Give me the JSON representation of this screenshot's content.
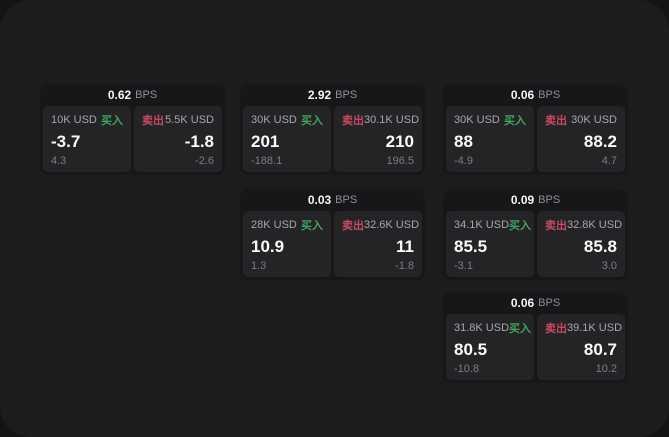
{
  "labels": {
    "bps": "BPS",
    "buy": "买入",
    "sell": "卖出"
  },
  "colors": {
    "page_bg": "#141414",
    "window_bg": "#1c1c1e",
    "card_bg": "#17171a",
    "panel_bg": "#242427",
    "buy_green": "#3ea55c",
    "sell_red": "#c64a62"
  },
  "cards": [
    {
      "bps": "0.62",
      "buy": {
        "size": "10K USD",
        "value": "-3.7",
        "delta": "4.3"
      },
      "sell": {
        "size": "5.5K USD",
        "value": "-1.8",
        "delta": "-2.6"
      }
    },
    {
      "bps": "2.92",
      "buy": {
        "size": "30K USD",
        "value": "201",
        "delta": "-188.1"
      },
      "sell": {
        "size": "30.1K USD",
        "value": "210",
        "delta": "196.5"
      }
    },
    {
      "bps": "0.06",
      "buy": {
        "size": "30K USD",
        "value": "88",
        "delta": "-4.9"
      },
      "sell": {
        "size": "30K USD",
        "value": "88.2",
        "delta": "4.7"
      }
    },
    {
      "bps": "0.03",
      "buy": {
        "size": "28K USD",
        "value": "10.9",
        "delta": "1.3"
      },
      "sell": {
        "size": "32.6K USD",
        "value": "11",
        "delta": "-1.8"
      }
    },
    {
      "bps": "0.09",
      "buy": {
        "size": "34.1K USD",
        "value": "85.5",
        "delta": "-3.1"
      },
      "sell": {
        "size": "32.8K USD",
        "value": "85.8",
        "delta": "3.0"
      }
    },
    {
      "bps": "0.06",
      "buy": {
        "size": "31.8K USD",
        "value": "80.5",
        "delta": "-10.8"
      },
      "sell": {
        "size": "39.1K USD",
        "value": "80.7",
        "delta": "10.2"
      }
    }
  ]
}
